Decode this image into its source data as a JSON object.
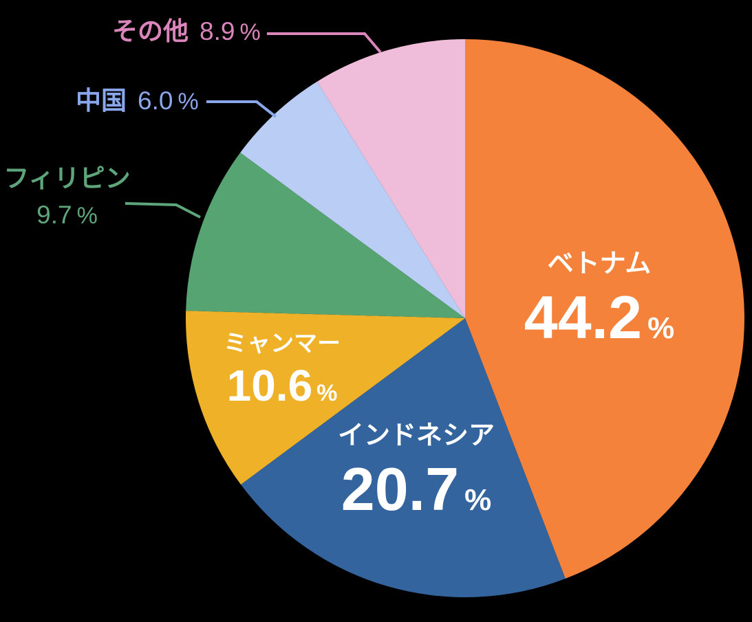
{
  "chart_data": {
    "type": "pie",
    "title": "",
    "background": "#000000",
    "percent_sign": "%",
    "start_angle_deg_from_top": 0,
    "direction": "clockwise",
    "slices": [
      {
        "name": "ベトナム",
        "percent": "44.2",
        "value": 44.2,
        "color": "#F5823B",
        "text_color": "#FFFFFF",
        "label_position": "inside"
      },
      {
        "name": "インドネシア",
        "percent": "20.7",
        "value": 20.7,
        "color": "#33649E",
        "text_color": "#FFFFFF",
        "label_position": "inside"
      },
      {
        "name": "ミャンマー",
        "percent": "10.6",
        "value": 10.6,
        "color": "#EEB127",
        "text_color": "#FFFFFF",
        "label_position": "inside"
      },
      {
        "name": "フィリピン",
        "percent": "9.7",
        "value": 9.7,
        "color": "#57A473",
        "text_color": "#5FA57B",
        "label_position": "outside"
      },
      {
        "name": "中国",
        "percent": "6.0",
        "value": 6.0,
        "color": "#BACDF4",
        "text_color": "#8BA7EC",
        "label_position": "outside"
      },
      {
        "name": "その他",
        "percent": "8.9",
        "value": 8.9,
        "color": "#EFBCD9",
        "text_color": "#DA86BC",
        "label_position": "outside"
      }
    ]
  }
}
